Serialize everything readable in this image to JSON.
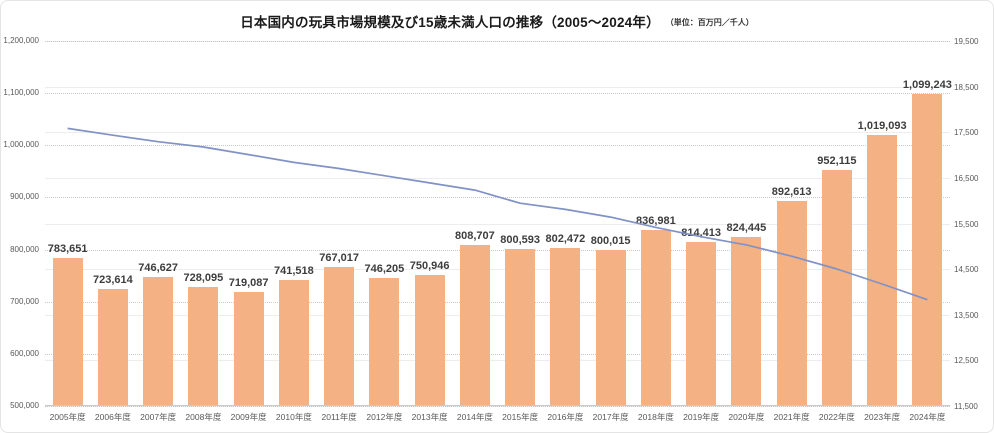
{
  "chart_data": {
    "type": "bar",
    "title": "日本国内の玩具市場規模及び15歳未満人口の推移（2005～2024年）",
    "unit_note": "（単位：百万円／千人）",
    "legend": "none",
    "grid": true,
    "categories": [
      "2005年度",
      "2006年度",
      "2007年度",
      "2008年度",
      "2009年度",
      "2010年度",
      "2011年度",
      "2012年度",
      "2013年度",
      "2014年度",
      "2015年度",
      "2016年度",
      "2017年度",
      "2018年度",
      "2019年度",
      "2020年度",
      "2021年度",
      "2022年度",
      "2023年度",
      "2024年度"
    ],
    "series": [
      {
        "name": "玩具市場規模（百万円）",
        "chart_type": "bar",
        "axis": "left",
        "color": "#f4b183",
        "values": [
          783651,
          723614,
          746627,
          728095,
          719087,
          741518,
          767017,
          746205,
          750946,
          808707,
          800593,
          802472,
          800015,
          836981,
          814413,
          824445,
          892613,
          952115,
          1019093,
          1099243
        ],
        "labels": [
          "783,651",
          "723,614",
          "746,627",
          "728,095",
          "719,087",
          "741,518",
          "767,017",
          "746,205",
          "750,946",
          "808,707",
          "800,593",
          "802,472",
          "800,015",
          "836,981",
          "814,413",
          "824,445",
          "892,613",
          "952,115",
          "1,019,093",
          "1,099,243"
        ]
      },
      {
        "name": "15歳未満人口（千人）",
        "chart_type": "line",
        "axis": "right",
        "color": "#8092c6",
        "estimated": true,
        "values": [
          17585,
          17435,
          17293,
          17176,
          17011,
          16839,
          16705,
          16547,
          16390,
          16233,
          15945,
          15809,
          15641,
          15415,
          15210,
          15032,
          14784,
          14503,
          14173,
          13830
        ]
      }
    ],
    "left_axis": {
      "min": 500000,
      "max": 1200000,
      "step": 100000,
      "tick_labels": [
        "1,200,000",
        "1,100,000",
        "1,000,000",
        "900,000",
        "800,000",
        "700,000",
        "600,000",
        "500,000"
      ]
    },
    "right_axis": {
      "min": 11500,
      "max": 19500,
      "step": 1000,
      "tick_labels": [
        "19,500",
        "18,500",
        "17,500",
        "16,500",
        "15,500",
        "14,500",
        "13,500",
        "12,500",
        "11,500"
      ]
    }
  }
}
